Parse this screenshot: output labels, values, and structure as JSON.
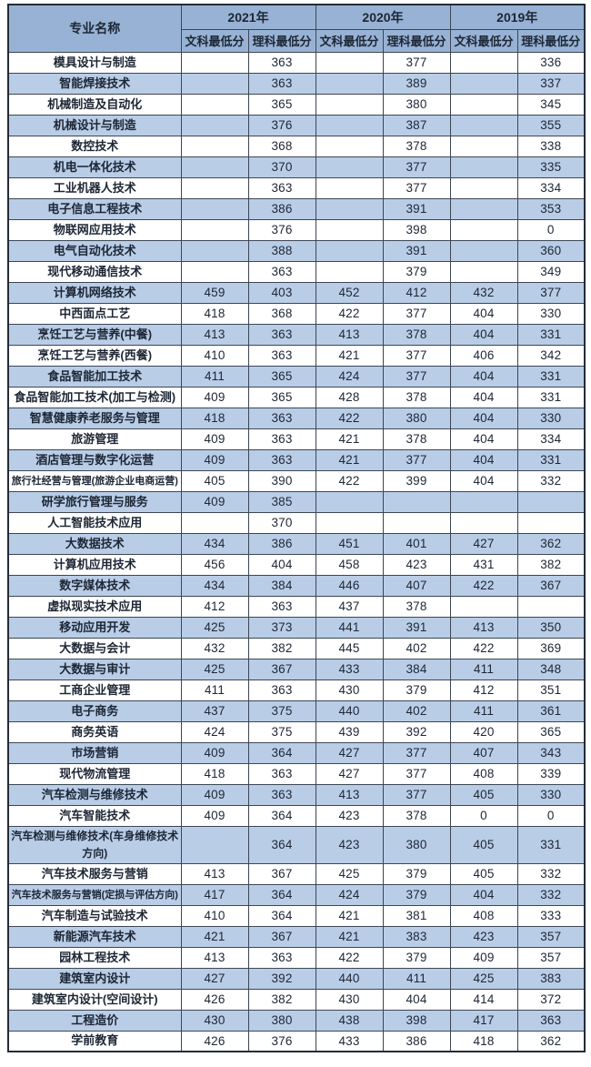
{
  "colors": {
    "header_fill": "#97b2d4",
    "row_alt_fill": "#b9cde7",
    "row_fill": "#ffffff",
    "border": "#3c4654",
    "outer_border": "#232b37",
    "text": "#1d2634"
  },
  "table": {
    "major_column_header": "专业名称",
    "year_groups": [
      {
        "year": "2021年",
        "sub": [
          "文科最低分",
          "理科最低分"
        ]
      },
      {
        "year": "2020年",
        "sub": [
          "文科最低分",
          "理科最低分"
        ]
      },
      {
        "year": "2019年",
        "sub": [
          "文科最低分",
          "理科最低分"
        ]
      }
    ],
    "rows": [
      {
        "name": "模具设计与制造",
        "scores": [
          "",
          "363",
          "",
          "377",
          "",
          "336"
        ]
      },
      {
        "name": "智能焊接技术",
        "scores": [
          "",
          "363",
          "",
          "389",
          "",
          "337"
        ]
      },
      {
        "name": "机械制造及自动化",
        "scores": [
          "",
          "365",
          "",
          "380",
          "",
          "345"
        ]
      },
      {
        "name": "机械设计与制造",
        "scores": [
          "",
          "376",
          "",
          "387",
          "",
          "355"
        ]
      },
      {
        "name": "数控技术",
        "scores": [
          "",
          "368",
          "",
          "378",
          "",
          "338"
        ]
      },
      {
        "name": "机电一体化技术",
        "scores": [
          "",
          "370",
          "",
          "377",
          "",
          "335"
        ]
      },
      {
        "name": "工业机器人技术",
        "scores": [
          "",
          "363",
          "",
          "377",
          "",
          "334"
        ]
      },
      {
        "name": "电子信息工程技术",
        "scores": [
          "",
          "386",
          "",
          "391",
          "",
          "353"
        ]
      },
      {
        "name": "物联网应用技术",
        "scores": [
          "",
          "376",
          "",
          "398",
          "",
          "0"
        ]
      },
      {
        "name": "电气自动化技术",
        "scores": [
          "",
          "388",
          "",
          "391",
          "",
          "360"
        ]
      },
      {
        "name": "现代移动通信技术",
        "scores": [
          "",
          "363",
          "",
          "379",
          "",
          "349"
        ]
      },
      {
        "name": "计算机网络技术",
        "scores": [
          "459",
          "403",
          "452",
          "412",
          "432",
          "377"
        ]
      },
      {
        "name": "中西面点工艺",
        "scores": [
          "418",
          "368",
          "422",
          "377",
          "404",
          "330"
        ]
      },
      {
        "name": "烹饪工艺与营养(中餐)",
        "scores": [
          "413",
          "363",
          "413",
          "378",
          "404",
          "331"
        ]
      },
      {
        "name": "烹饪工艺与营养(西餐)",
        "scores": [
          "410",
          "363",
          "421",
          "377",
          "406",
          "342"
        ]
      },
      {
        "name": "食品智能加工技术",
        "scores": [
          "411",
          "365",
          "424",
          "377",
          "404",
          "331"
        ]
      },
      {
        "name": "食品智能加工技术(加工与检测)",
        "scores": [
          "409",
          "365",
          "428",
          "378",
          "404",
          "331"
        ]
      },
      {
        "name": "智慧健康养老服务与管理",
        "scores": [
          "418",
          "363",
          "422",
          "380",
          "404",
          "330"
        ]
      },
      {
        "name": "旅游管理",
        "scores": [
          "409",
          "363",
          "421",
          "378",
          "404",
          "334"
        ]
      },
      {
        "name": "酒店管理与数字化运营",
        "scores": [
          "409",
          "363",
          "421",
          "377",
          "404",
          "331"
        ]
      },
      {
        "name": "旅行社经营与管理(旅游企业电商运营)",
        "scores": [
          "405",
          "390",
          "422",
          "399",
          "404",
          "332"
        ]
      },
      {
        "name": "研学旅行管理与服务",
        "scores": [
          "409",
          "385",
          "",
          "",
          "",
          ""
        ]
      },
      {
        "name": "人工智能技术应用",
        "scores": [
          "",
          "370",
          "",
          "",
          "",
          ""
        ]
      },
      {
        "name": "大数据技术",
        "scores": [
          "434",
          "386",
          "451",
          "401",
          "427",
          "362"
        ]
      },
      {
        "name": "计算机应用技术",
        "scores": [
          "456",
          "404",
          "458",
          "423",
          "431",
          "382"
        ]
      },
      {
        "name": "数字媒体技术",
        "scores": [
          "434",
          "384",
          "446",
          "407",
          "422",
          "367"
        ]
      },
      {
        "name": "虚拟现实技术应用",
        "scores": [
          "412",
          "363",
          "437",
          "378",
          "",
          ""
        ]
      },
      {
        "name": "移动应用开发",
        "scores": [
          "425",
          "373",
          "441",
          "391",
          "413",
          "350"
        ]
      },
      {
        "name": "大数据与会计",
        "scores": [
          "432",
          "382",
          "445",
          "402",
          "422",
          "369"
        ]
      },
      {
        "name": "大数据与审计",
        "scores": [
          "425",
          "367",
          "433",
          "384",
          "411",
          "348"
        ]
      },
      {
        "name": "工商企业管理",
        "scores": [
          "411",
          "363",
          "430",
          "379",
          "412",
          "351"
        ]
      },
      {
        "name": "电子商务",
        "scores": [
          "437",
          "375",
          "440",
          "402",
          "411",
          "361"
        ]
      },
      {
        "name": "商务英语",
        "scores": [
          "424",
          "375",
          "439",
          "392",
          "420",
          "365"
        ]
      },
      {
        "name": "市场营销",
        "scores": [
          "409",
          "364",
          "427",
          "377",
          "407",
          "343"
        ]
      },
      {
        "name": "现代物流管理",
        "scores": [
          "418",
          "363",
          "427",
          "377",
          "408",
          "339"
        ]
      },
      {
        "name": "汽车检测与维修技术",
        "scores": [
          "409",
          "363",
          "413",
          "377",
          "405",
          "330"
        ]
      },
      {
        "name": "汽车智能技术",
        "scores": [
          "409",
          "364",
          "423",
          "378",
          "0",
          "0"
        ]
      },
      {
        "name": "汽车检测与维修技术(车身维修技术方向)",
        "scores": [
          "",
          "364",
          "423",
          "380",
          "405",
          "331"
        ]
      },
      {
        "name": "汽车技术服务与营销",
        "scores": [
          "413",
          "367",
          "425",
          "379",
          "405",
          "332"
        ]
      },
      {
        "name": "汽车技术服务与营销(定损与评估方向)",
        "scores": [
          "417",
          "364",
          "424",
          "379",
          "404",
          "332"
        ]
      },
      {
        "name": "汽车制造与试验技术",
        "scores": [
          "410",
          "364",
          "421",
          "381",
          "408",
          "333"
        ]
      },
      {
        "name": "新能源汽车技术",
        "scores": [
          "421",
          "367",
          "421",
          "383",
          "423",
          "357"
        ]
      },
      {
        "name": "园林工程技术",
        "scores": [
          "413",
          "363",
          "422",
          "379",
          "409",
          "357"
        ]
      },
      {
        "name": "建筑室内设计",
        "scores": [
          "427",
          "392",
          "440",
          "411",
          "425",
          "383"
        ]
      },
      {
        "name": "建筑室内设计(空间设计)",
        "scores": [
          "426",
          "382",
          "430",
          "404",
          "414",
          "372"
        ]
      },
      {
        "name": "工程造价",
        "scores": [
          "430",
          "380",
          "438",
          "398",
          "417",
          "363"
        ]
      },
      {
        "name": "学前教育",
        "scores": [
          "426",
          "376",
          "433",
          "386",
          "418",
          "362"
        ]
      }
    ]
  }
}
